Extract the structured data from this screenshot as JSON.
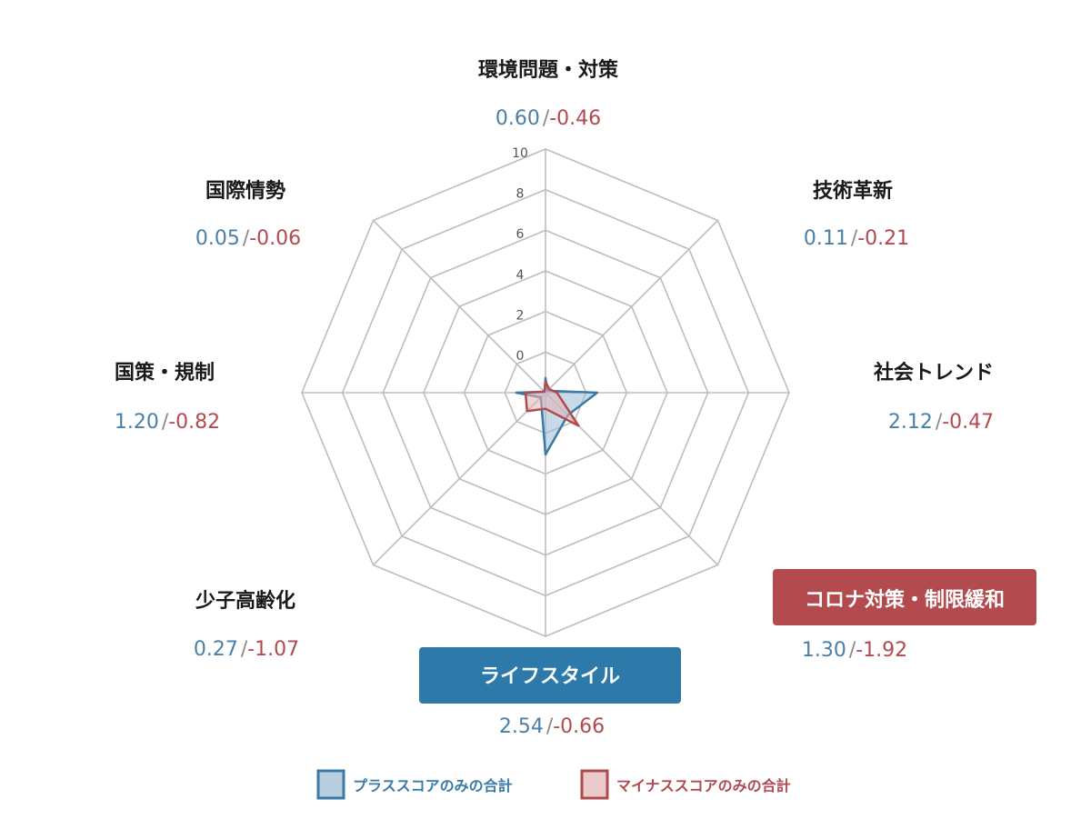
{
  "chart_data": {
    "type": "radar",
    "r_ticks": [
      "0",
      "2",
      "4",
      "6",
      "8",
      "10"
    ],
    "rmax": 10,
    "axes": [
      {
        "label": "環境問題・対策",
        "plus": "0.60",
        "minus": "-0.46",
        "highlight": ""
      },
      {
        "label": "技術革新",
        "plus": "0.11",
        "minus": "-0.21",
        "highlight": ""
      },
      {
        "label": "社会トレンド",
        "plus": "2.12",
        "minus": "-0.47",
        "highlight": ""
      },
      {
        "label": "コロナ対策・制限緩和",
        "plus": "1.30",
        "minus": "-1.92",
        "highlight": "minus"
      },
      {
        "label": "ライフスタイル",
        "plus": "2.54",
        "minus": "-0.66",
        "highlight": "plus"
      },
      {
        "label": "少子高齢化",
        "plus": "0.27",
        "minus": "-1.07",
        "highlight": ""
      },
      {
        "label": "国策・規制",
        "plus": "1.20",
        "minus": "-0.82",
        "highlight": ""
      },
      {
        "label": "国際情勢",
        "plus": "0.05",
        "minus": "-0.06",
        "highlight": ""
      }
    ],
    "series": [
      {
        "name": "プラススコアのみの合計",
        "values": [
          0.6,
          0.11,
          2.12,
          1.3,
          2.54,
          0.27,
          1.2,
          0.05
        ],
        "stroke": "#3a7aa8",
        "fill": "#9bbbd3"
      },
      {
        "name": "マイナススコアのみの合計",
        "values": [
          0.46,
          0.21,
          0.47,
          1.92,
          0.66,
          1.07,
          0.82,
          0.06
        ],
        "stroke": "#b04a4e",
        "fill": "#e3b3b6"
      }
    ],
    "separator": "/",
    "colors": {
      "plus": "#4a7fa7",
      "minus": "#b24a4e",
      "grid": "#bdbdbd",
      "hl_plus_bg": "#2d7aaa",
      "hl_minus_bg": "#b24a4e"
    }
  }
}
